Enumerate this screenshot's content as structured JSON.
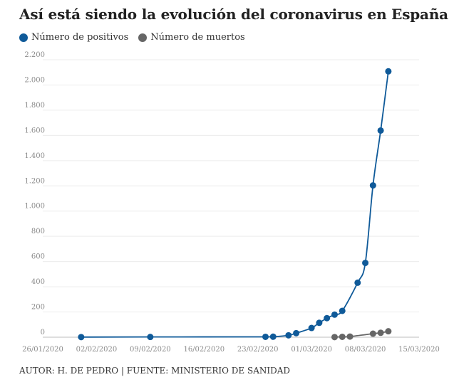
{
  "title": "Así está siendo la evolución del coronavirus en España",
  "footer": "AUTOR: H. DE PEDRO | FUENTE: MINISTERIO DE SANIDAD",
  "chart_data": {
    "type": "line",
    "title": "Así está siendo la evolución del coronavirus en España",
    "xlabel": "",
    "ylabel": "",
    "legend_position": "top-left",
    "grid": true,
    "x_tick_labels": [
      "26/01/2020",
      "02/02/2020",
      "09/02/2020",
      "16/02/2020",
      "23/02/2020",
      "01/03/2020",
      "08/03/2020",
      "15/03/2020"
    ],
    "y_tick_labels": [
      "0",
      "200",
      "400",
      "600",
      "800",
      "1.000",
      "1.200",
      "1.400",
      "1.600",
      "1.800",
      "2.000",
      "2.200"
    ],
    "y_ticks": [
      0,
      200,
      400,
      600,
      800,
      1000,
      1200,
      1400,
      1600,
      1800,
      2000,
      2200
    ],
    "ylim": [
      0,
      2200
    ],
    "xlim": [
      "2020-01-26",
      "2020-03-15"
    ],
    "series": [
      {
        "name": "Número de positivos",
        "color": "#0f5a99",
        "points": [
          {
            "x": "2020-01-31",
            "y": 1
          },
          {
            "x": "2020-02-09",
            "y": 2
          },
          {
            "x": "2020-02-24",
            "y": 3
          },
          {
            "x": "2020-02-25",
            "y": 4
          },
          {
            "x": "2020-02-27",
            "y": 15
          },
          {
            "x": "2020-02-28",
            "y": 32
          },
          {
            "x": "2020-03-01",
            "y": 73
          },
          {
            "x": "2020-03-02",
            "y": 114
          },
          {
            "x": "2020-03-03",
            "y": 151
          },
          {
            "x": "2020-03-04",
            "y": 179
          },
          {
            "x": "2020-03-05",
            "y": 209
          },
          {
            "x": "2020-03-07",
            "y": 432
          },
          {
            "x": "2020-03-08",
            "y": 589
          },
          {
            "x": "2020-03-09",
            "y": 1204
          },
          {
            "x": "2020-03-10",
            "y": 1639
          },
          {
            "x": "2020-03-11",
            "y": 2108
          }
        ]
      },
      {
        "name": "Número de muertos",
        "color": "#666666",
        "points": [
          {
            "x": "2020-03-04",
            "y": 1
          },
          {
            "x": "2020-03-05",
            "y": 3
          },
          {
            "x": "2020-03-06",
            "y": 5
          },
          {
            "x": "2020-03-09",
            "y": 28
          },
          {
            "x": "2020-03-10",
            "y": 35
          },
          {
            "x": "2020-03-11",
            "y": 47
          }
        ]
      }
    ]
  }
}
